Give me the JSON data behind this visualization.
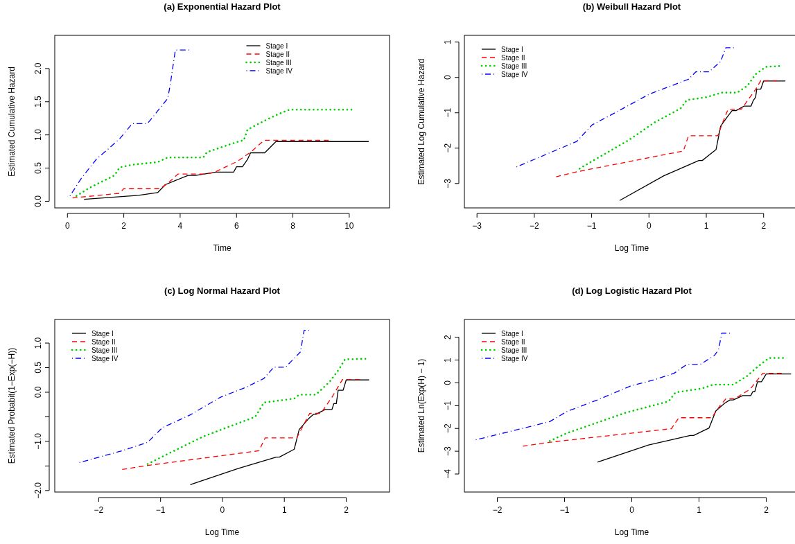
{
  "chart_data": [
    {
      "type": "line",
      "title": "(a) Exponential Hazard Plot",
      "xlabel": "Time",
      "ylabel": "Estimated Cumulative Hazard",
      "xlim": [
        -0.45,
        11.43
      ],
      "ylim": [
        -0.1,
        2.5
      ],
      "xticks": [
        0,
        2,
        4,
        6,
        8,
        10
      ],
      "yticks": [
        {
          "value": 0,
          "label": "0.0"
        },
        0.5,
        {
          "value": 1,
          "label": "1.0"
        },
        1.5,
        {
          "value": 2,
          "label": "2.0"
        }
      ],
      "legend": "top",
      "series": [
        {
          "name": "Stage I",
          "color": "#000000",
          "line_style": "solid",
          "x": [
            0.59,
            2.52,
            3.2,
            3.47,
            4.28,
            4.55,
            5.27,
            5.9,
            6.0,
            6.21,
            6.39,
            6.5,
            7.0,
            7.4,
            10.69
          ],
          "values": [
            0.03,
            0.09,
            0.13,
            0.25,
            0.39,
            0.39,
            0.44,
            0.44,
            0.52,
            0.52,
            0.63,
            0.73,
            0.73,
            0.9,
            0.9
          ]
        },
        {
          "name": "Stage II",
          "color": "#ff0000",
          "line_style": "dashed",
          "x": [
            0.18,
            1.85,
            2.0,
            3.29,
            3.56,
            3.92,
            4.9,
            5.18,
            6.03,
            6.53,
            6.98,
            9.27
          ],
          "values": [
            0.05,
            0.12,
            0.19,
            0.19,
            0.27,
            0.41,
            0.41,
            0.43,
            0.6,
            0.75,
            0.92,
            0.92
          ]
        },
        {
          "name": "Stage III",
          "color": "#00cd00",
          "line_style": "dotted",
          "x": [
            0.32,
            0.77,
            1.67,
            1.85,
            2.3,
            3.2,
            3.56,
            4.82,
            4.95,
            5.99,
            6.26,
            6.39,
            7.07,
            7.52,
            7.88,
            10.08
          ],
          "values": [
            0.08,
            0.2,
            0.39,
            0.51,
            0.55,
            0.59,
            0.66,
            0.66,
            0.74,
            0.89,
            0.92,
            1.08,
            1.23,
            1.32,
            1.38,
            1.38
          ]
        },
        {
          "name": "Stage IV",
          "color": "#0000ff",
          "line_style": "dashdot",
          "x": [
            0.09,
            0.5,
            1.04,
            1.4,
            1.85,
            2.3,
            2.84,
            3.2,
            3.56,
            3.65,
            3.83,
            4.32
          ],
          "values": [
            0.08,
            0.35,
            0.64,
            0.77,
            0.94,
            1.17,
            1.17,
            1.36,
            1.55,
            1.76,
            2.28,
            2.28
          ]
        }
      ]
    },
    {
      "type": "line",
      "title": "(b) Weibull Hazard Plot",
      "xlabel": "Log Time",
      "ylabel": "Estimated Log Cumulative Hazard",
      "xlim": [
        -3.22,
        2.62
      ],
      "ylim": [
        -3.69,
        1.19
      ],
      "xticks": [
        -3,
        -2,
        -1,
        0,
        1,
        2
      ],
      "yticks": [
        -3,
        -2,
        -1,
        0,
        1
      ],
      "legend": "top left",
      "series": [
        {
          "name": "Stage I",
          "color": "#000000",
          "line_style": "solid",
          "x": [
            -0.51,
            0.26,
            0.87,
            0.93,
            1.17,
            1.25,
            1.36,
            1.45,
            1.52,
            1.66,
            1.78,
            1.82,
            1.86,
            1.88,
            1.95,
            2.0,
            2.38
          ],
          "values": [
            -3.48,
            -2.78,
            -2.35,
            -2.35,
            -2.04,
            -1.38,
            -1.13,
            -0.94,
            -0.94,
            -0.81,
            -0.81,
            -0.65,
            -0.56,
            -0.33,
            -0.33,
            -0.1,
            -0.1
          ]
        },
        {
          "name": "Stage II",
          "color": "#ff0000",
          "line_style": "dashed",
          "x": [
            -1.62,
            -1.26,
            0.6,
            0.69,
            1.2,
            1.27,
            1.38,
            1.5,
            1.61,
            1.86,
            1.95,
            2.24
          ],
          "values": [
            -2.81,
            -2.67,
            -2.08,
            -1.65,
            -1.65,
            -1.34,
            -0.9,
            -0.9,
            -0.9,
            -0.34,
            -0.09,
            -0.09
          ]
        },
        {
          "name": "Stage III",
          "color": "#00cd00",
          "line_style": "dotted",
          "x": [
            -1.21,
            -1.12,
            -0.35,
            0.1,
            0.55,
            0.66,
            1.0,
            1.27,
            1.54,
            1.72,
            1.86,
            2.04,
            2.27
          ],
          "values": [
            -2.58,
            -2.49,
            -1.77,
            -1.27,
            -0.88,
            -0.64,
            -0.56,
            -0.43,
            -0.43,
            -0.23,
            0.09,
            0.3,
            0.32
          ]
        },
        {
          "name": "Stage IV",
          "color": "#0000ff",
          "line_style": "dashdot",
          "x": [
            -2.31,
            -1.26,
            -0.99,
            -0.58,
            0.01,
            0.37,
            0.69,
            0.82,
            1.05,
            1.25,
            1.34,
            1.48
          ],
          "values": [
            -2.53,
            -1.81,
            -1.34,
            -0.99,
            -0.47,
            -0.25,
            -0.05,
            0.16,
            0.16,
            0.45,
            0.84,
            0.84
          ]
        }
      ]
    },
    {
      "type": "line",
      "title": "(c) Log Normal Hazard Plot",
      "xlabel": "Log Time",
      "ylabel": "Estimated Probabit(1−Exp(−H))",
      "xlim": [
        -2.71,
        2.7
      ],
      "ylim": [
        -2.03,
        1.48
      ],
      "xticks": [
        -2,
        -1,
        0,
        1,
        2
      ],
      "yticks": [
        {
          "value": -2,
          "label": "−2.0"
        },
        {
          "value": -1.5,
          "label": null
        },
        {
          "value": -1,
          "label": "−1.0"
        },
        {
          "value": -0.5,
          "label": null
        },
        {
          "value": 0,
          "label": "0.0"
        },
        0.5,
        {
          "value": 1,
          "label": "1.0"
        }
      ],
      "legend": "top left",
      "series": [
        {
          "name": "Stage I",
          "color": "#000000",
          "line_style": "solid",
          "x": [
            -0.52,
            0.26,
            0.87,
            0.92,
            1.16,
            1.24,
            1.39,
            1.47,
            1.51,
            1.66,
            1.77,
            1.8,
            1.84,
            1.87,
            1.95,
            2.0,
            2.37
          ],
          "values": [
            -1.88,
            -1.55,
            -1.32,
            -1.32,
            -1.16,
            -0.76,
            -0.54,
            -0.45,
            -0.45,
            -0.35,
            -0.35,
            -0.23,
            -0.23,
            0.04,
            0.04,
            0.25,
            0.25
          ]
        },
        {
          "name": "Stage II",
          "color": "#ff0000",
          "line_style": "dashed",
          "x": [
            -1.62,
            -1.21,
            0.59,
            0.69,
            1.2,
            1.41,
            1.59,
            1.77,
            1.94,
            2.22
          ],
          "values": [
            -1.57,
            -1.49,
            -1.19,
            -0.93,
            -0.93,
            -0.43,
            -0.43,
            -0.1,
            0.26,
            0.26
          ]
        },
        {
          "name": "Stage III",
          "color": "#00cd00",
          "line_style": "dotted",
          "x": [
            -1.21,
            -0.89,
            -0.31,
            0.53,
            0.67,
            1.16,
            1.24,
            1.51,
            1.73,
            1.88,
            1.98,
            2.31
          ],
          "values": [
            -1.46,
            -1.26,
            -0.9,
            -0.5,
            -0.21,
            -0.13,
            -0.05,
            -0.05,
            0.21,
            0.46,
            0.67,
            0.68
          ]
        },
        {
          "name": "Stage IV",
          "color": "#0000ff",
          "line_style": "dashdot",
          "x": [
            -2.31,
            -1.62,
            -1.21,
            -0.97,
            -0.52,
            -0.03,
            0.38,
            0.67,
            0.83,
            1.02,
            1.26,
            1.32,
            1.4
          ],
          "values": [
            -1.43,
            -1.19,
            -1.02,
            -0.72,
            -0.46,
            -0.1,
            0.1,
            0.28,
            0.51,
            0.51,
            0.82,
            1.26,
            1.26
          ]
        }
      ]
    },
    {
      "type": "line",
      "title": "(d) Log Logistic Hazard Plot",
      "xlabel": "Log Time",
      "ylabel": "Estimated Ln(Exp(H) − 1)",
      "xlim": [
        -2.49,
        2.49
      ],
      "ylim": [
        -4.79,
        2.78
      ],
      "xticks": [
        -2,
        -1,
        0,
        1,
        2
      ],
      "yticks": [
        -4,
        -3,
        -2,
        -1,
        0,
        1,
        2
      ],
      "legend": "top left",
      "series": [
        {
          "name": "Stage I",
          "color": "#000000",
          "line_style": "solid",
          "x": [
            -0.51,
            0.25,
            0.87,
            0.92,
            1.15,
            1.25,
            1.38,
            1.46,
            1.51,
            1.65,
            1.77,
            1.8,
            1.83,
            1.87,
            1.93,
            2.0,
            2.37
          ],
          "values": [
            -3.48,
            -2.73,
            -2.31,
            -2.31,
            -1.98,
            -1.23,
            -0.9,
            -0.75,
            -0.75,
            -0.56,
            -0.56,
            -0.39,
            -0.39,
            0.05,
            0.05,
            0.39,
            0.39
          ]
        },
        {
          "name": "Stage II",
          "color": "#ff0000",
          "line_style": "dashed",
          "x": [
            -1.62,
            -1.26,
            0.59,
            0.7,
            1.19,
            1.31,
            1.4,
            1.53,
            1.76,
            1.95,
            2.23
          ],
          "values": [
            -2.78,
            -2.62,
            -2.01,
            -1.53,
            -1.53,
            -1.01,
            -0.7,
            -0.7,
            -0.28,
            0.42,
            0.42
          ]
        },
        {
          "name": "Stage III",
          "color": "#00cd00",
          "line_style": "dotted",
          "x": [
            -1.22,
            -0.96,
            -0.09,
            0.55,
            0.65,
            1.04,
            1.21,
            1.51,
            1.72,
            1.87,
            2.04,
            2.25
          ],
          "values": [
            -2.55,
            -2.2,
            -1.31,
            -0.81,
            -0.42,
            -0.25,
            -0.08,
            -0.08,
            0.31,
            0.7,
            1.09,
            1.09
          ]
        },
        {
          "name": "Stage IV",
          "color": "#0000ff",
          "line_style": "dashdot",
          "x": [
            -2.32,
            -1.6,
            -1.22,
            -0.96,
            -0.51,
            -0.02,
            0.32,
            0.63,
            0.82,
            1.02,
            1.23,
            1.29,
            1.34,
            1.46
          ],
          "values": [
            -2.5,
            -1.98,
            -1.7,
            -1.25,
            -0.75,
            -0.14,
            0.12,
            0.42,
            0.81,
            0.81,
            1.2,
            1.45,
            2.18,
            2.18
          ]
        }
      ]
    }
  ]
}
